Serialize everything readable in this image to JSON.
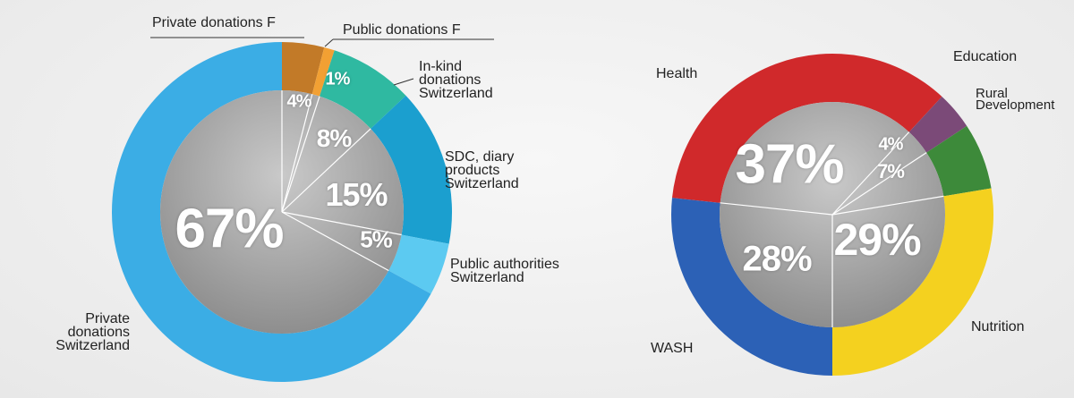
{
  "chart_data": [
    {
      "type": "donut",
      "categories": [
        "Private donations F",
        "Public donations F",
        "In-kind\ndonations\nSwitzerland",
        "SDC, diary\nproducts\nSwitzerland",
        "Public authorities\nSwitzerland",
        "Private\ndonations\nSwitzerland"
      ],
      "values": [
        4,
        1,
        8,
        15,
        5,
        67
      ],
      "value_labels": [
        "4%",
        "1%",
        "8%",
        "15%",
        "5%",
        "67%"
      ],
      "colors": [
        "#c27a28",
        "#f2a033",
        "#2fb9a1",
        "#1b9fcf",
        "#5ccaf1",
        "#3badE5"
      ]
    },
    {
      "type": "donut",
      "categories": [
        "Health",
        "Education",
        "Rural\nDevelopment",
        "Nutrition",
        "WASH"
      ],
      "values": [
        37,
        4,
        7,
        29,
        28
      ],
      "value_labels": [
        "37%",
        "4%",
        "7%",
        "29%",
        "28%"
      ],
      "colors": [
        "#d0292b",
        "#7b4a78",
        "#3d8a3a",
        "#f4d11f",
        "#2c61b6"
      ]
    }
  ]
}
